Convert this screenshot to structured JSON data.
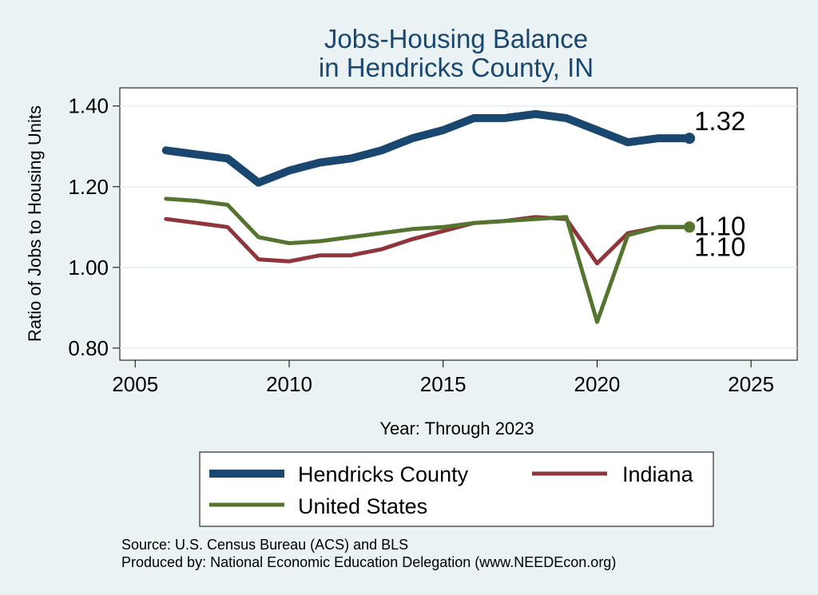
{
  "chart_data": {
    "type": "line",
    "title": [
      "Jobs-Housing Balance",
      "in Hendricks County, IN"
    ],
    "xlabel": "Year: Through 2023",
    "ylabel": "Ratio of Jobs to Housing Units",
    "xlim": [
      2004.5,
      2026.5
    ],
    "ylim": [
      0.77,
      1.445
    ],
    "xticks": [
      2005,
      2010,
      2015,
      2020,
      2025
    ],
    "yticks": [
      0.8,
      1.0,
      1.2,
      1.4
    ],
    "ytick_labels": [
      "0.80",
      "1.00",
      "1.20",
      "1.40"
    ],
    "grid": true,
    "legend_position": "bottom",
    "x": [
      2006,
      2007,
      2008,
      2009,
      2010,
      2011,
      2012,
      2013,
      2014,
      2015,
      2016,
      2017,
      2018,
      2019,
      2020,
      2021,
      2022,
      2023
    ],
    "series": [
      {
        "name": "Hendricks County",
        "color": "#1a476f",
        "width": 10,
        "values": [
          1.29,
          1.28,
          1.27,
          1.21,
          1.24,
          1.26,
          1.27,
          1.29,
          1.32,
          1.34,
          1.37,
          1.37,
          1.38,
          1.37,
          1.34,
          1.31,
          1.32,
          1.32
        ],
        "end_label": "1.32"
      },
      {
        "name": "Indiana",
        "color": "#90353b",
        "width": 5,
        "values": [
          1.12,
          1.11,
          1.1,
          1.02,
          1.015,
          1.03,
          1.03,
          1.045,
          1.07,
          1.09,
          1.11,
          1.115,
          1.125,
          1.12,
          1.01,
          1.085,
          1.1,
          1.1
        ],
        "end_label": "1.10"
      },
      {
        "name": "United States",
        "color": "#55752f",
        "width": 5,
        "values": [
          1.17,
          1.165,
          1.155,
          1.075,
          1.06,
          1.065,
          1.075,
          1.085,
          1.095,
          1.1,
          1.11,
          1.115,
          1.12,
          1.125,
          0.865,
          1.08,
          1.1,
          1.1
        ],
        "end_label": "1.10"
      }
    ]
  },
  "source": {
    "line1": "Source: U.S. Census Bureau (ACS) and BLS",
    "line2": "Produced by: National Economic Education Delegation (www.NEEDEcon.org)"
  }
}
